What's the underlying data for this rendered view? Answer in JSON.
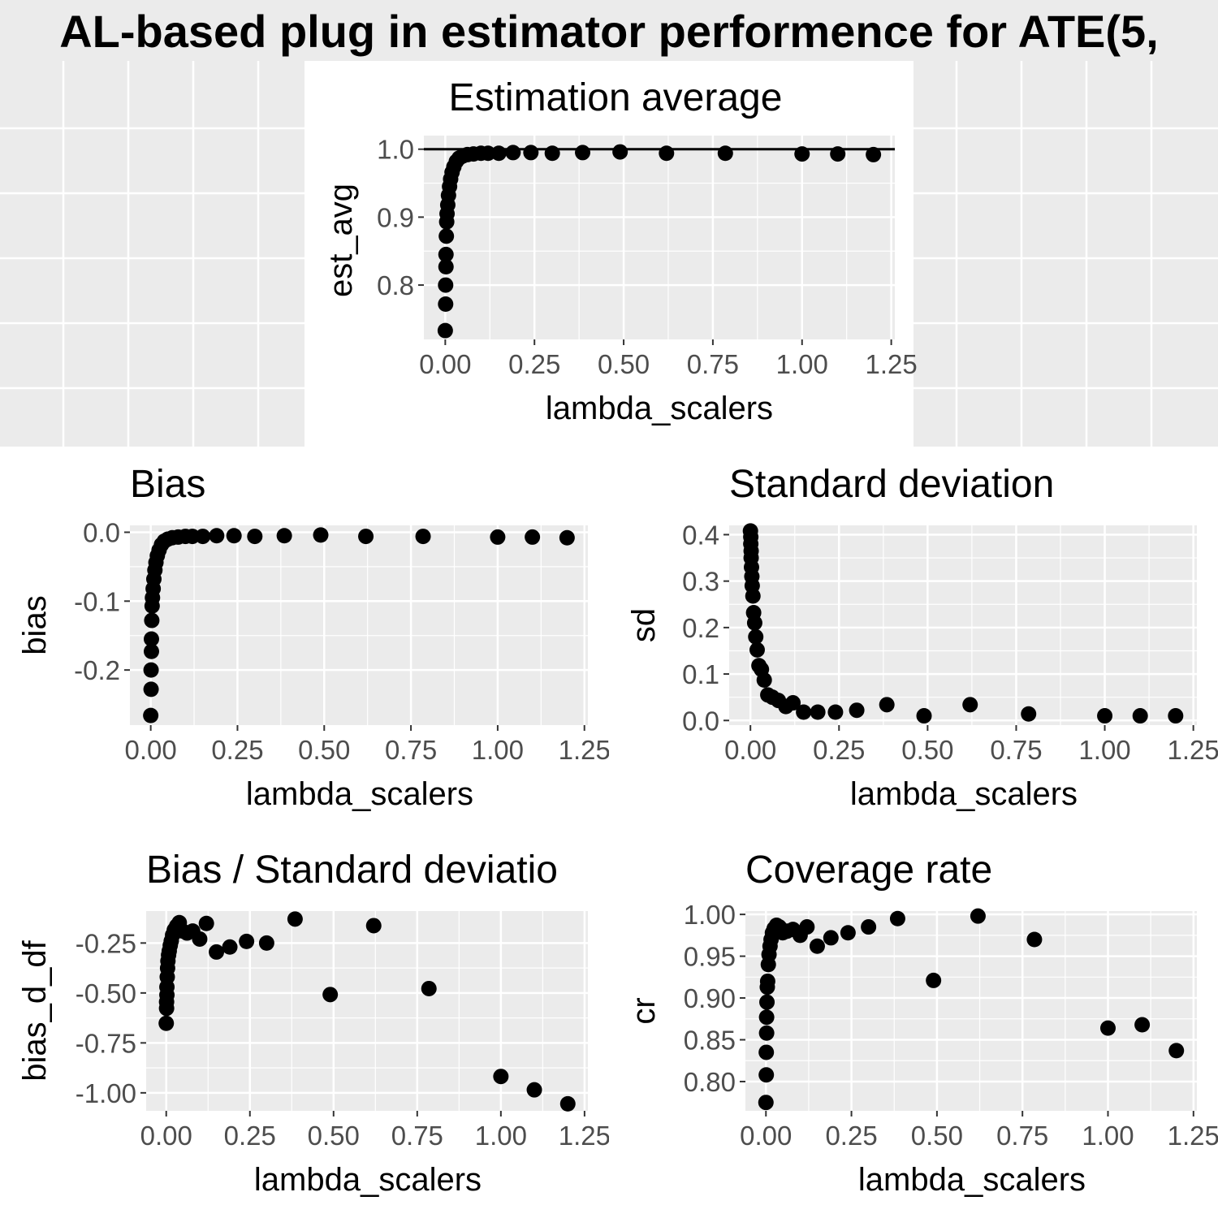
{
  "figure_title": "AL-based plug in estimator performence for ATE(5,",
  "chart_data": [
    {
      "type": "scatter",
      "title": "Estimation average",
      "xlabel": "lambda_scalers",
      "ylabel": "est_avg",
      "xlim": [
        -0.06,
        1.26
      ],
      "ylim": [
        0.72,
        1.02
      ],
      "xticks": [
        0,
        0.25,
        0.5,
        0.75,
        1.0,
        1.25
      ],
      "xtick_labels": [
        "0.00",
        "0.25",
        "0.50",
        "0.75",
        "1.00",
        "1.25"
      ],
      "yticks": [
        0.8,
        0.9,
        1.0
      ],
      "ytick_labels": [
        "0.8",
        "0.9",
        "1.0"
      ],
      "hline": 1.0,
      "grid": true,
      "points": [
        [
          0.0,
          0.733
        ],
        [
          0.001,
          0.772
        ],
        [
          0.001,
          0.8
        ],
        [
          0.002,
          0.827
        ],
        [
          0.002,
          0.845
        ],
        [
          0.003,
          0.872
        ],
        [
          0.004,
          0.893
        ],
        [
          0.005,
          0.905
        ],
        [
          0.007,
          0.918
        ],
        [
          0.009,
          0.932
        ],
        [
          0.012,
          0.945
        ],
        [
          0.015,
          0.956
        ],
        [
          0.019,
          0.966
        ],
        [
          0.024,
          0.974
        ],
        [
          0.031,
          0.982
        ],
        [
          0.039,
          0.987
        ],
        [
          0.049,
          0.99
        ],
        [
          0.062,
          0.992
        ],
        [
          0.079,
          0.993
        ],
        [
          0.1,
          0.994
        ],
        [
          0.12,
          0.994
        ],
        [
          0.15,
          0.994
        ],
        [
          0.19,
          0.995
        ],
        [
          0.24,
          0.995
        ],
        [
          0.3,
          0.994
        ],
        [
          0.385,
          0.995
        ],
        [
          0.49,
          0.996
        ],
        [
          0.62,
          0.994
        ],
        [
          0.785,
          0.994
        ],
        [
          1.0,
          0.993
        ],
        [
          1.1,
          0.993
        ],
        [
          1.2,
          0.992
        ]
      ]
    },
    {
      "type": "scatter",
      "title": "Bias",
      "xlabel": "lambda_scalers",
      "ylabel": "bias",
      "xlim": [
        -0.06,
        1.26
      ],
      "ylim": [
        -0.28,
        0.01
      ],
      "xticks": [
        0,
        0.25,
        0.5,
        0.75,
        1.0,
        1.25
      ],
      "xtick_labels": [
        "0.00",
        "0.25",
        "0.50",
        "0.75",
        "1.00",
        "1.25"
      ],
      "yticks": [
        -0.2,
        -0.1,
        0.0
      ],
      "ytick_labels": [
        "-0.2",
        "-0.1",
        "0.0"
      ],
      "grid": true,
      "points": [
        [
          0.0,
          -0.266
        ],
        [
          0.001,
          -0.228
        ],
        [
          0.001,
          -0.2
        ],
        [
          0.002,
          -0.173
        ],
        [
          0.002,
          -0.155
        ],
        [
          0.003,
          -0.128
        ],
        [
          0.004,
          -0.107
        ],
        [
          0.005,
          -0.095
        ],
        [
          0.007,
          -0.082
        ],
        [
          0.009,
          -0.068
        ],
        [
          0.012,
          -0.055
        ],
        [
          0.015,
          -0.044
        ],
        [
          0.019,
          -0.034
        ],
        [
          0.024,
          -0.026
        ],
        [
          0.031,
          -0.018
        ],
        [
          0.039,
          -0.013
        ],
        [
          0.049,
          -0.01
        ],
        [
          0.062,
          -0.008
        ],
        [
          0.079,
          -0.007
        ],
        [
          0.1,
          -0.006
        ],
        [
          0.12,
          -0.006
        ],
        [
          0.15,
          -0.006
        ],
        [
          0.19,
          -0.005
        ],
        [
          0.24,
          -0.005
        ],
        [
          0.3,
          -0.006
        ],
        [
          0.385,
          -0.005
        ],
        [
          0.49,
          -0.004
        ],
        [
          0.62,
          -0.006
        ],
        [
          0.785,
          -0.006
        ],
        [
          1.0,
          -0.007
        ],
        [
          1.1,
          -0.007
        ],
        [
          1.2,
          -0.008
        ]
      ]
    },
    {
      "type": "scatter",
      "title": "Standard deviation",
      "xlabel": "lambda_scalers",
      "ylabel": "sd",
      "xlim": [
        -0.06,
        1.26
      ],
      "ylim": [
        -0.01,
        0.42
      ],
      "xticks": [
        0,
        0.25,
        0.5,
        0.75,
        1.0,
        1.25
      ],
      "xtick_labels": [
        "0.00",
        "0.25",
        "0.50",
        "0.75",
        "1.00",
        "1.25"
      ],
      "yticks": [
        0.0,
        0.1,
        0.2,
        0.3,
        0.4
      ],
      "ytick_labels": [
        "0.0",
        "0.1",
        "0.2",
        "0.3",
        "0.4"
      ],
      "grid": true,
      "points": [
        [
          0.0,
          0.408
        ],
        [
          0.001,
          0.395
        ],
        [
          0.001,
          0.38
        ],
        [
          0.002,
          0.365
        ],
        [
          0.002,
          0.35
        ],
        [
          0.003,
          0.33
        ],
        [
          0.004,
          0.31
        ],
        [
          0.005,
          0.29
        ],
        [
          0.007,
          0.268
        ],
        [
          0.009,
          0.232
        ],
        [
          0.012,
          0.21
        ],
        [
          0.015,
          0.18
        ],
        [
          0.019,
          0.152
        ],
        [
          0.024,
          0.118
        ],
        [
          0.031,
          0.11
        ],
        [
          0.039,
          0.087
        ],
        [
          0.049,
          0.055
        ],
        [
          0.062,
          0.05
        ],
        [
          0.079,
          0.043
        ],
        [
          0.1,
          0.03
        ],
        [
          0.12,
          0.038
        ],
        [
          0.15,
          0.018
        ],
        [
          0.19,
          0.018
        ],
        [
          0.24,
          0.018
        ],
        [
          0.3,
          0.022
        ],
        [
          0.385,
          0.034
        ],
        [
          0.49,
          0.01
        ],
        [
          0.62,
          0.034
        ],
        [
          0.785,
          0.014
        ],
        [
          1.0,
          0.01
        ],
        [
          1.1,
          0.01
        ],
        [
          1.2,
          0.01
        ]
      ]
    },
    {
      "type": "scatter",
      "title": "Bias / Standard deviatio",
      "xlabel": "lambda_scalers",
      "ylabel": "bias_d_df",
      "xlim": [
        -0.06,
        1.26
      ],
      "ylim": [
        -1.09,
        -0.09
      ],
      "xticks": [
        0,
        0.25,
        0.5,
        0.75,
        1.0,
        1.25
      ],
      "xtick_labels": [
        "0.00",
        "0.25",
        "0.50",
        "0.75",
        "1.00",
        "1.25"
      ],
      "yticks": [
        -1.0,
        -0.75,
        -0.5,
        -0.25
      ],
      "ytick_labels": [
        "-1.00",
        "-0.75",
        "-0.50",
        "-0.25"
      ],
      "grid": true,
      "points": [
        [
          0.0,
          -0.652
        ],
        [
          0.001,
          -0.577
        ],
        [
          0.001,
          -0.545
        ],
        [
          0.002,
          -0.51
        ],
        [
          0.002,
          -0.47
        ],
        [
          0.003,
          -0.42
        ],
        [
          0.004,
          -0.376
        ],
        [
          0.005,
          -0.34
        ],
        [
          0.007,
          -0.31
        ],
        [
          0.009,
          -0.29
        ],
        [
          0.012,
          -0.262
        ],
        [
          0.015,
          -0.24
        ],
        [
          0.019,
          -0.21
        ],
        [
          0.024,
          -0.185
        ],
        [
          0.031,
          -0.165
        ],
        [
          0.039,
          -0.148
        ],
        [
          0.049,
          -0.19
        ],
        [
          0.062,
          -0.2
        ],
        [
          0.079,
          -0.19
        ],
        [
          0.1,
          -0.23
        ],
        [
          0.12,
          -0.152
        ],
        [
          0.15,
          -0.295
        ],
        [
          0.19,
          -0.27
        ],
        [
          0.24,
          -0.242
        ],
        [
          0.3,
          -0.25
        ],
        [
          0.385,
          -0.13
        ],
        [
          0.49,
          -0.508
        ],
        [
          0.62,
          -0.163
        ],
        [
          0.785,
          -0.478
        ],
        [
          1.0,
          -0.918
        ],
        [
          1.1,
          -0.985
        ],
        [
          1.2,
          -1.055
        ]
      ]
    },
    {
      "type": "scatter",
      "title": "Coverage rate",
      "xlabel": "lambda_scalers",
      "ylabel": "cr",
      "xlim": [
        -0.06,
        1.26
      ],
      "ylim": [
        0.765,
        1.004
      ],
      "xticks": [
        0,
        0.25,
        0.5,
        0.75,
        1.0,
        1.25
      ],
      "xtick_labels": [
        "0.00",
        "0.25",
        "0.50",
        "0.75",
        "1.00",
        "1.25"
      ],
      "yticks": [
        0.8,
        0.85,
        0.9,
        0.95,
        1.0
      ],
      "ytick_labels": [
        "0.80",
        "0.85",
        "0.90",
        "0.95",
        "1.00"
      ],
      "grid": true,
      "points": [
        [
          0.0,
          0.775
        ],
        [
          0.001,
          0.808
        ],
        [
          0.001,
          0.835
        ],
        [
          0.002,
          0.858
        ],
        [
          0.002,
          0.877
        ],
        [
          0.003,
          0.895
        ],
        [
          0.004,
          0.913
        ],
        [
          0.005,
          0.92
        ],
        [
          0.007,
          0.94
        ],
        [
          0.009,
          0.952
        ],
        [
          0.012,
          0.962
        ],
        [
          0.015,
          0.97
        ],
        [
          0.019,
          0.978
        ],
        [
          0.024,
          0.983
        ],
        [
          0.031,
          0.987
        ],
        [
          0.039,
          0.985
        ],
        [
          0.049,
          0.978
        ],
        [
          0.062,
          0.98
        ],
        [
          0.079,
          0.982
        ],
        [
          0.1,
          0.975
        ],
        [
          0.12,
          0.985
        ],
        [
          0.15,
          0.962
        ],
        [
          0.19,
          0.972
        ],
        [
          0.24,
          0.978
        ],
        [
          0.3,
          0.985
        ],
        [
          0.385,
          0.995
        ],
        [
          0.49,
          0.921
        ],
        [
          0.62,
          0.998
        ],
        [
          0.785,
          0.97
        ],
        [
          1.0,
          0.864
        ],
        [
          1.1,
          0.868
        ],
        [
          1.2,
          0.837
        ]
      ]
    }
  ]
}
